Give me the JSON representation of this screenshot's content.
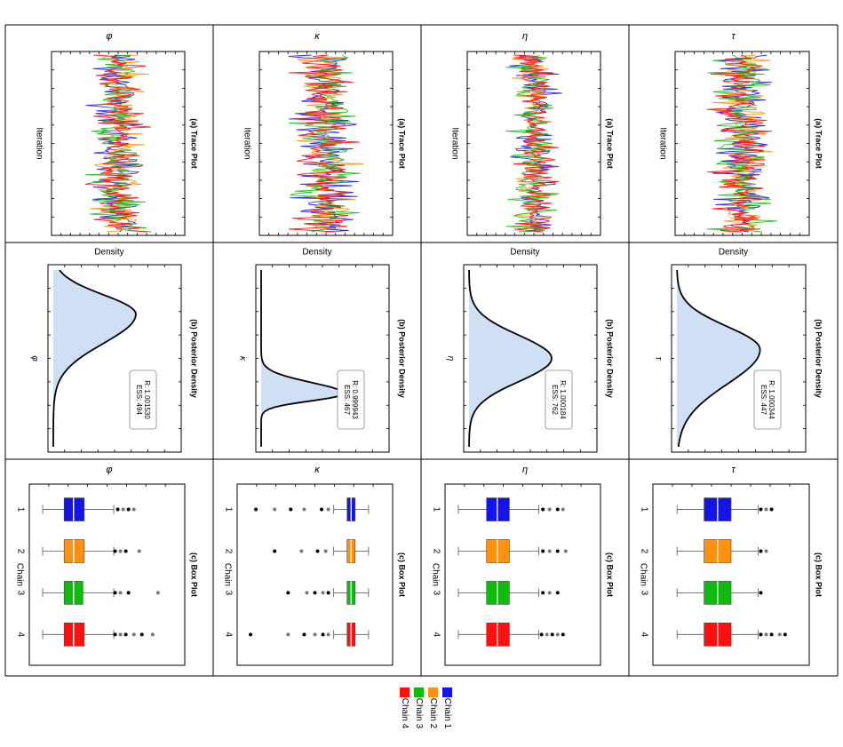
{
  "figure": {
    "orientation": "rotated 90 degrees clockwise",
    "row_titles": {
      "trace": "(a) Trace Plot",
      "density": "(b) Posterior Density",
      "box": "(c) Box Plot"
    },
    "axis_labels": {
      "trace": "Iteration",
      "density": "Density",
      "box": "Chain"
    },
    "parameters": [
      "φ",
      "κ",
      "η",
      "τ"
    ],
    "stat_prefix": {
      "rhat": "R: ",
      "ess": "ESS: "
    }
  },
  "colors": {
    "chain1": "#1414e6",
    "chain2": "#ff9010",
    "chain3": "#10bb10",
    "chain4": "#ff1010",
    "density_fill": "#cfe0f5",
    "density_line": "#000000",
    "grid": "#000000"
  },
  "legend": {
    "items": [
      {
        "label": "Chain 1",
        "color": "#1414e6"
      },
      {
        "label": "Chain 2",
        "color": "#ff9010"
      },
      {
        "label": "Chain 3",
        "color": "#10bb10"
      },
      {
        "label": "Chain 4",
        "color": "#ff1010"
      }
    ]
  },
  "chart_data": [
    {
      "parameter": "φ",
      "trace": {
        "type": "line",
        "title": "(a) Trace Plot",
        "xlabel": "Iteration",
        "ylabel": "φ",
        "chains": [
          "Chain 1",
          "Chain 2",
          "Chain 3",
          "Chain 4"
        ],
        "center": 0.5,
        "spread": 0.28
      },
      "density": {
        "type": "area",
        "title": "(b) Posterior Density",
        "xlabel": "φ",
        "ylabel": "Density",
        "mode": 0.25,
        "sd": 0.11,
        "skew": "right",
        "rhat": "1.001530",
        "ess": "494"
      },
      "box": {
        "type": "box",
        "title": "(c) Box Plot",
        "xlabel": "Chain",
        "ylabel": "φ",
        "categories": [
          "1",
          "2",
          "3",
          "4"
        ],
        "q1": [
          0.18,
          0.18,
          0.18,
          0.18
        ],
        "median": [
          0.25,
          0.25,
          0.25,
          0.25
        ],
        "q3": [
          0.33,
          0.33,
          0.32,
          0.33
        ],
        "whisker_low": [
          0.02,
          0.02,
          0.02,
          0.02
        ],
        "whisker_high": [
          0.55,
          0.55,
          0.55,
          0.55
        ],
        "outliers": [
          [
            0.58,
            0.62,
            0.66,
            0.7
          ],
          [
            0.56,
            0.6,
            0.64,
            0.74
          ],
          [
            0.56,
            0.6,
            0.66,
            0.88
          ],
          [
            0.56,
            0.6,
            0.64,
            0.7,
            0.76,
            0.84
          ]
        ]
      }
    },
    {
      "parameter": "κ",
      "trace": {
        "type": "line",
        "title": "(a) Trace Plot",
        "xlabel": "Iteration",
        "ylabel": "κ",
        "chains": [
          "Chain 1",
          "Chain 2",
          "Chain 3",
          "Chain 4"
        ],
        "center": 0.5,
        "spread": 0.32
      },
      "density": {
        "type": "area",
        "title": "(b) Posterior Density",
        "xlabel": "κ",
        "ylabel": "Density",
        "mode": 0.7,
        "sd": 0.04,
        "skew": "left",
        "rhat": "0.999943",
        "ess": "467"
      },
      "box": {
        "type": "box",
        "title": "(c) Box Plot",
        "xlabel": "Chain",
        "ylabel": "κ",
        "categories": [
          "1",
          "2",
          "3",
          "4"
        ],
        "q1": [
          0.74,
          0.74,
          0.74,
          0.74
        ],
        "median": [
          0.77,
          0.77,
          0.77,
          0.77
        ],
        "q3": [
          0.8,
          0.8,
          0.8,
          0.8
        ],
        "whisker_low": [
          0.64,
          0.64,
          0.64,
          0.64
        ],
        "whisker_high": [
          0.9,
          0.9,
          0.9,
          0.9
        ],
        "outliers": [
          [
            0.06,
            0.2,
            0.32,
            0.42,
            0.55,
            0.6
          ],
          [
            0.2,
            0.4,
            0.52,
            0.58
          ],
          [
            0.3,
            0.44,
            0.5,
            0.56,
            0.6
          ],
          [
            0.02,
            0.3,
            0.42,
            0.5,
            0.56,
            0.6
          ]
        ]
      }
    },
    {
      "parameter": "η",
      "trace": {
        "type": "line",
        "title": "(a) Trace Plot",
        "xlabel": "Iteration",
        "ylabel": "η",
        "chains": [
          "Chain 1",
          "Chain 2",
          "Chain 3",
          "Chain 4"
        ],
        "center": 0.5,
        "spread": 0.24
      },
      "density": {
        "type": "area",
        "title": "(b) Posterior Density",
        "xlabel": "η",
        "ylabel": "Density",
        "mode": 0.5,
        "sd": 0.13,
        "skew": "none",
        "rhat": "1.000184",
        "ess": "762"
      },
      "box": {
        "type": "box",
        "title": "(c) Box Plot",
        "xlabel": "Chain",
        "ylabel": "η",
        "categories": [
          "1",
          "2",
          "3",
          "4"
        ],
        "q1": [
          0.23,
          0.23,
          0.23,
          0.23
        ],
        "median": [
          0.31,
          0.31,
          0.31,
          0.31
        ],
        "q3": [
          0.4,
          0.4,
          0.4,
          0.4
        ],
        "whisker_low": [
          0.02,
          0.02,
          0.02,
          0.02
        ],
        "whisker_high": [
          0.62,
          0.62,
          0.62,
          0.62
        ],
        "outliers": [
          [
            0.65,
            0.7,
            0.76,
            0.8
          ],
          [
            0.65,
            0.7,
            0.76,
            0.82
          ],
          [
            0.65,
            0.7,
            0.76
          ],
          [
            0.64,
            0.68,
            0.72,
            0.76,
            0.8
          ]
        ]
      }
    },
    {
      "parameter": "τ",
      "trace": {
        "type": "line",
        "title": "(a) Trace Plot",
        "xlabel": "Iteration",
        "ylabel": "τ",
        "chains": [
          "Chain 1",
          "Chain 2",
          "Chain 3",
          "Chain 4"
        ],
        "center": 0.5,
        "spread": 0.3
      },
      "density": {
        "type": "area",
        "title": "(b) Posterior Density",
        "xlabel": "τ",
        "ylabel": "Density",
        "mode": 0.45,
        "sd": 0.13,
        "skew": "right",
        "rhat": "1.000344",
        "ess": "447"
      },
      "box": {
        "type": "box",
        "title": "(c) Box Plot",
        "xlabel": "Chain",
        "ylabel": "τ",
        "categories": [
          "1",
          "2",
          "3",
          "4"
        ],
        "q1": [
          0.3,
          0.3,
          0.3,
          0.3
        ],
        "median": [
          0.4,
          0.4,
          0.4,
          0.4
        ],
        "q3": [
          0.5,
          0.5,
          0.5,
          0.5
        ],
        "whisker_low": [
          0.1,
          0.1,
          0.1,
          0.1
        ],
        "whisker_high": [
          0.7,
          0.7,
          0.7,
          0.7
        ],
        "outliers": [
          [
            0.72,
            0.76,
            0.8
          ],
          [
            0.72,
            0.76
          ],
          [
            0.72
          ],
          [
            0.72,
            0.76,
            0.8,
            0.86,
            0.9
          ]
        ]
      }
    }
  ]
}
